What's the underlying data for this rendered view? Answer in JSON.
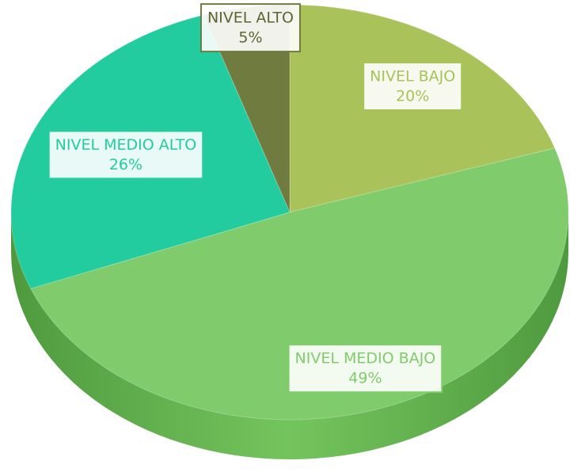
{
  "chart_data": {
    "type": "pie",
    "categories": [
      "NIVEL BAJO",
      "NIVEL MEDIO BAJO",
      "NIVEL MEDIO ALTO",
      "NIVEL ALTO"
    ],
    "values": [
      20,
      49,
      26,
      5
    ],
    "value_labels": [
      "20%",
      "49%",
      "26%",
      "5%"
    ],
    "colors": [
      "#a9c25a",
      "#80cc6c",
      "#22cc9e",
      "#6f7b3f"
    ]
  }
}
